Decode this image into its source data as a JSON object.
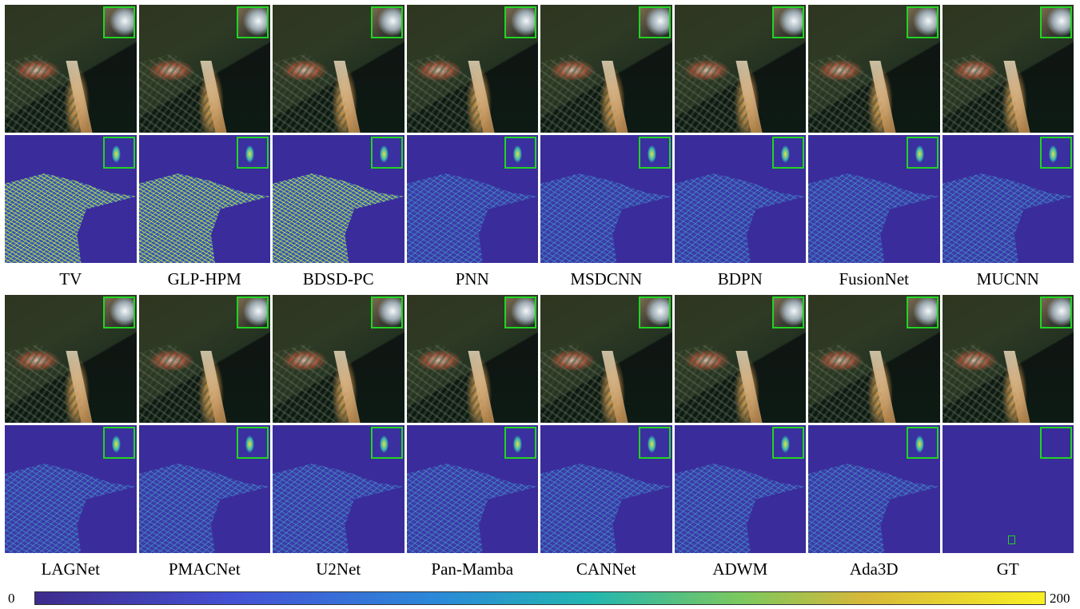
{
  "row1_labels": [
    "TV",
    "GLP-HPM",
    "BDSD-PC",
    "PNN",
    "MSDCNN",
    "BDPN",
    "FusionNet",
    "MUCNN"
  ],
  "row2_labels": [
    "LAGNet",
    "PMACNet",
    "U2Net",
    "Pan-Mamba",
    "CANNet",
    "ADWM",
    "Ada3D",
    "GT"
  ],
  "colorbar": {
    "min": "0",
    "max": "200"
  },
  "colors": {
    "inset_border": "#22d422",
    "error_base": "#3a2c9a"
  }
}
